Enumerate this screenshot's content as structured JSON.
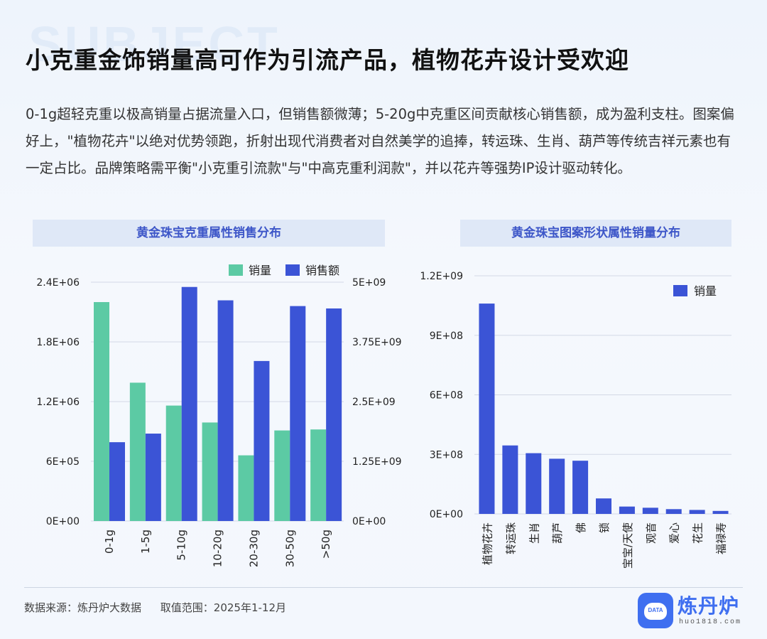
{
  "watermark": "SUBJECT",
  "title": "小克重金饰销量高可作为引流产品，植物花卉设计受欢迎",
  "description": "0-1g超轻克重以极高销量占据流量入口，但销售额微薄；5-20g中克重区间贡献核心销售额，成为盈利支柱。图案偏好上，\"植物花卉\"以绝对优势领跑，折射出现代消费者对自然美学的追捧，转运珠、生肖、葫芦等传统吉祥元素也有一定占比。品牌策略需平衡\"小克重引流款\"与\"中高克重利润款\"，并以花卉等强势IP设计驱动转化。",
  "footer": {
    "source": "数据来源：炼丹炉大数据",
    "range": "取值范围：2025年1-12月"
  },
  "logo": {
    "name": "炼丹炉",
    "url": "huo1818.com",
    "badge": "DATA"
  },
  "chart_data": [
    {
      "type": "bar",
      "title": "黄金珠宝克重属性销售分布",
      "categories": [
        "0-1g",
        "1-5g",
        "5-10g",
        "10-20g",
        "20-30g",
        "30-50g",
        ">50g"
      ],
      "series": [
        {
          "name": "销量",
          "axis": "left",
          "color": "#5ccaa4",
          "values": [
            2200000,
            1390000,
            1160000,
            990000,
            660000,
            910000,
            920000
          ]
        },
        {
          "name": "销售额",
          "axis": "right",
          "color": "#3b54d6",
          "values": [
            1650000000,
            1830000000,
            4900000000,
            4620000000,
            3350000000,
            4500000000,
            4450000000
          ]
        }
      ],
      "y_left": {
        "lim": [
          0,
          2400000
        ],
        "ticks": [
          0,
          600000,
          1200000,
          1800000,
          2400000
        ],
        "tick_labels": [
          "0E+00",
          "6E+05",
          "1.2E+06",
          "1.8E+06",
          "2.4E+06"
        ]
      },
      "y_right": {
        "lim": [
          0,
          5000000000
        ],
        "ticks": [
          0,
          1250000000,
          2500000000,
          3750000000,
          5000000000
        ],
        "tick_labels": [
          "0E+00",
          "1.25E+09",
          "2.5E+09",
          "3.75E+09",
          "5E+09"
        ]
      },
      "grid": true,
      "legend": "top-right"
    },
    {
      "type": "bar",
      "title": "黄金珠宝图案形状属性销量分布",
      "categories": [
        "植物花卉",
        "转运珠",
        "生肖",
        "葫芦",
        "佛",
        "锁",
        "宝宝/天使",
        "观音",
        "爱心",
        "花生",
        "福禄寿"
      ],
      "series": [
        {
          "name": "销量",
          "color": "#3b54d6",
          "values": [
            1060000000,
            345000000,
            306000000,
            278000000,
            268000000,
            78000000,
            37000000,
            31000000,
            24000000,
            20000000,
            15000000
          ]
        }
      ],
      "y": {
        "lim": [
          0,
          1200000000
        ],
        "ticks": [
          0,
          300000000,
          600000000,
          900000000,
          1200000000
        ],
        "tick_labels": [
          "0E+00",
          "3E+08",
          "6E+08",
          "9E+08",
          "1.2E+09"
        ]
      },
      "grid": true,
      "legend": "top-right"
    }
  ]
}
